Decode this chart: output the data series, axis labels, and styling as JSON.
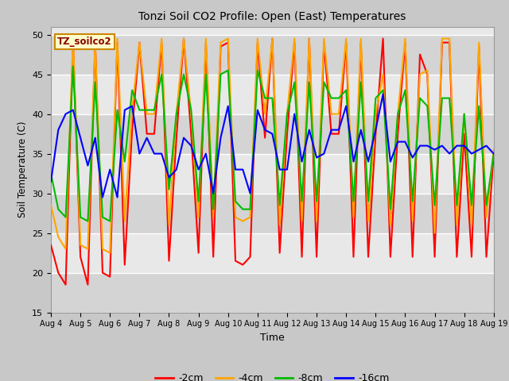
{
  "title": "Tonzi Soil CO2 Profile: Open (East) Temperatures",
  "ylabel": "Soil Temperature (C)",
  "xlabel": "Time",
  "ylim": [
    15,
    51
  ],
  "yticks": [
    15,
    20,
    25,
    30,
    35,
    40,
    45,
    50
  ],
  "fig_bg": "#c8c8c8",
  "plot_bg": "#e8e8e8",
  "legend_label": "TZ_soilco2",
  "series": {
    "-2cm": {
      "color": "#ff0000",
      "label": "-2cm"
    },
    "-4cm": {
      "color": "#ffa500",
      "label": "-4cm"
    },
    "-8cm": {
      "color": "#00bb00",
      "label": "-8cm"
    },
    "-16cm": {
      "color": "#0000ff",
      "label": "-16cm"
    }
  },
  "n_days": 15,
  "xtick_labels": [
    "Aug 4",
    "Aug 5",
    "Aug 6",
    "Aug 7",
    "Aug 8",
    "Aug 9",
    "Aug 10",
    "Aug 11",
    "Aug 12",
    "Aug 13",
    "Aug 14",
    "Aug 15",
    "Aug 16",
    "Aug 17",
    "Aug 18",
    "Aug 19"
  ],
  "xtick_positions": [
    0,
    1,
    2,
    3,
    4,
    5,
    6,
    7,
    8,
    9,
    10,
    11,
    12,
    13,
    14,
    15
  ],
  "red": [
    23.5,
    20.0,
    18.5,
    49.0,
    22.0,
    18.5,
    49.0,
    20.0,
    19.5,
    49.0,
    21.0,
    38.0,
    49.0,
    37.5,
    37.5,
    49.0,
    21.5,
    37.0,
    49.5,
    37.5,
    22.5,
    49.0,
    22.0,
    48.5,
    49.0,
    21.5,
    21.0,
    22.0,
    49.0,
    37.0,
    49.5,
    22.5,
    37.5,
    49.0,
    22.0,
    49.5,
    22.0,
    49.0,
    37.5,
    37.5,
    49.0,
    22.0,
    49.0,
    22.0,
    37.5,
    49.5,
    22.0,
    37.5,
    49.0,
    22.0,
    47.5,
    45.0,
    22.0,
    49.0,
    49.0,
    22.0,
    37.5,
    22.0,
    48.5,
    22.0,
    35.0
  ],
  "orange": [
    28.5,
    24.5,
    23.0,
    49.5,
    23.5,
    23.0,
    49.0,
    23.0,
    22.5,
    49.5,
    26.5,
    40.5,
    49.0,
    40.0,
    40.0,
    49.5,
    26.0,
    40.0,
    49.5,
    40.0,
    27.0,
    49.5,
    27.0,
    49.0,
    49.5,
    27.0,
    26.5,
    27.0,
    49.5,
    40.0,
    49.5,
    26.0,
    40.0,
    49.5,
    26.5,
    49.5,
    26.5,
    49.5,
    40.0,
    40.0,
    49.5,
    27.0,
    49.5,
    26.5,
    40.0,
    45.0,
    26.0,
    40.0,
    49.5,
    26.5,
    45.0,
    45.5,
    25.0,
    49.5,
    49.5,
    26.0,
    40.0,
    26.0,
    49.0,
    27.0,
    35.5
  ],
  "green": [
    32.5,
    28.0,
    27.0,
    46.0,
    27.0,
    26.5,
    44.0,
    27.0,
    26.5,
    40.5,
    34.0,
    43.0,
    40.5,
    40.5,
    40.5,
    45.0,
    30.5,
    40.0,
    45.0,
    40.5,
    29.0,
    45.0,
    28.0,
    45.0,
    45.5,
    29.0,
    28.0,
    28.0,
    45.5,
    42.0,
    42.0,
    28.5,
    40.0,
    44.0,
    29.0,
    44.0,
    29.0,
    44.0,
    42.0,
    42.0,
    43.0,
    29.0,
    44.0,
    29.0,
    42.0,
    43.0,
    28.0,
    40.0,
    43.0,
    29.0,
    42.0,
    41.0,
    28.5,
    42.0,
    42.0,
    28.5,
    40.0,
    28.5,
    41.0,
    28.5,
    35.0
  ],
  "blue": [
    31.5,
    38.0,
    40.0,
    40.5,
    37.0,
    33.5,
    37.0,
    29.5,
    33.0,
    29.5,
    40.5,
    41.0,
    35.0,
    37.0,
    35.0,
    35.0,
    32.0,
    33.0,
    37.0,
    36.0,
    33.0,
    35.0,
    30.0,
    37.0,
    41.0,
    33.0,
    33.0,
    30.0,
    40.5,
    38.0,
    37.5,
    33.0,
    33.0,
    40.0,
    34.0,
    38.0,
    34.5,
    35.0,
    38.0,
    38.0,
    41.0,
    34.0,
    38.0,
    34.0,
    38.0,
    42.5,
    34.0,
    36.5,
    36.5,
    34.5,
    36.0,
    36.0,
    35.5,
    36.0,
    35.0,
    36.0,
    36.0,
    35.0,
    35.5,
    36.0,
    35.0
  ]
}
